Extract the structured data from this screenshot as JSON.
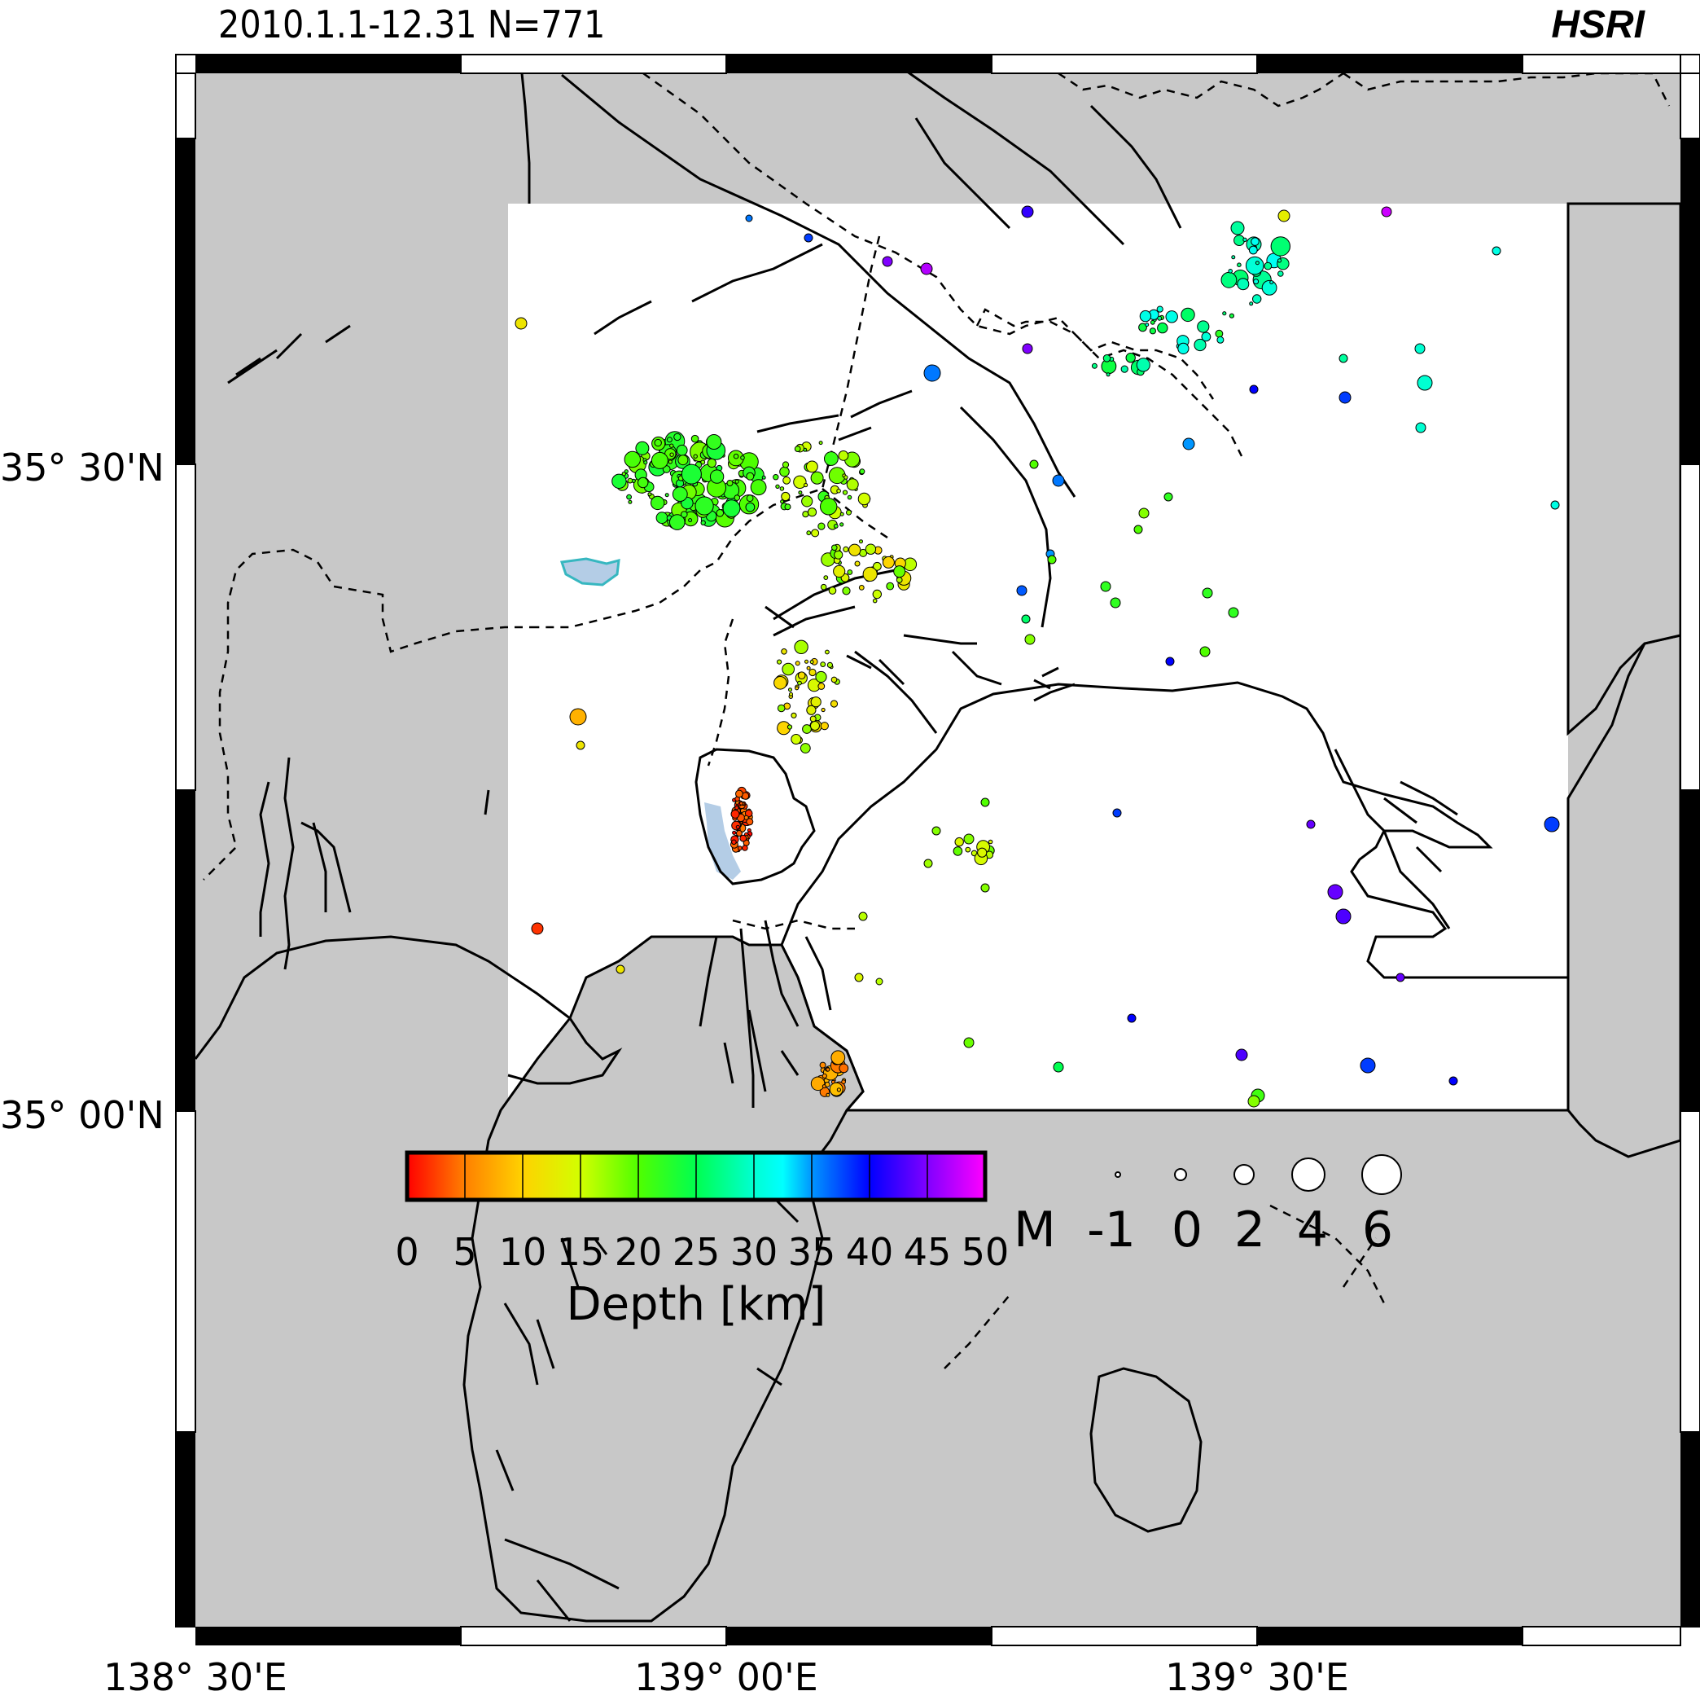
{
  "header": {
    "period_title": "2010.1.1-12.31 N=771",
    "logo": "HSRI"
  },
  "axes": {
    "lat_labels": [
      "35° 30'N",
      "35° 00'N"
    ],
    "lon_labels": [
      "138° 30'E",
      "139° 00'E",
      "139° 30'E"
    ]
  },
  "depth_scale": {
    "title": "Depth [km]",
    "ticks": [
      "0",
      "5",
      "10",
      "15",
      "20",
      "25",
      "30",
      "35",
      "40",
      "45",
      "50"
    ],
    "colors": [
      "#ff0000",
      "#ff8000",
      "#ffc800",
      "#ffff00",
      "#a0ff00",
      "#00ff00",
      "#00ffa0",
      "#00ffff",
      "#0080ff",
      "#0000ff",
      "#8000ff",
      "#ff00ff"
    ]
  },
  "magnitude_scale": {
    "prefix": "M",
    "labels": [
      "-1",
      "0",
      "2",
      "4",
      "6"
    ]
  },
  "colors": {
    "land": "#c8c8c8",
    "sea": "#ffffff",
    "lake": "#b4cde6"
  }
}
